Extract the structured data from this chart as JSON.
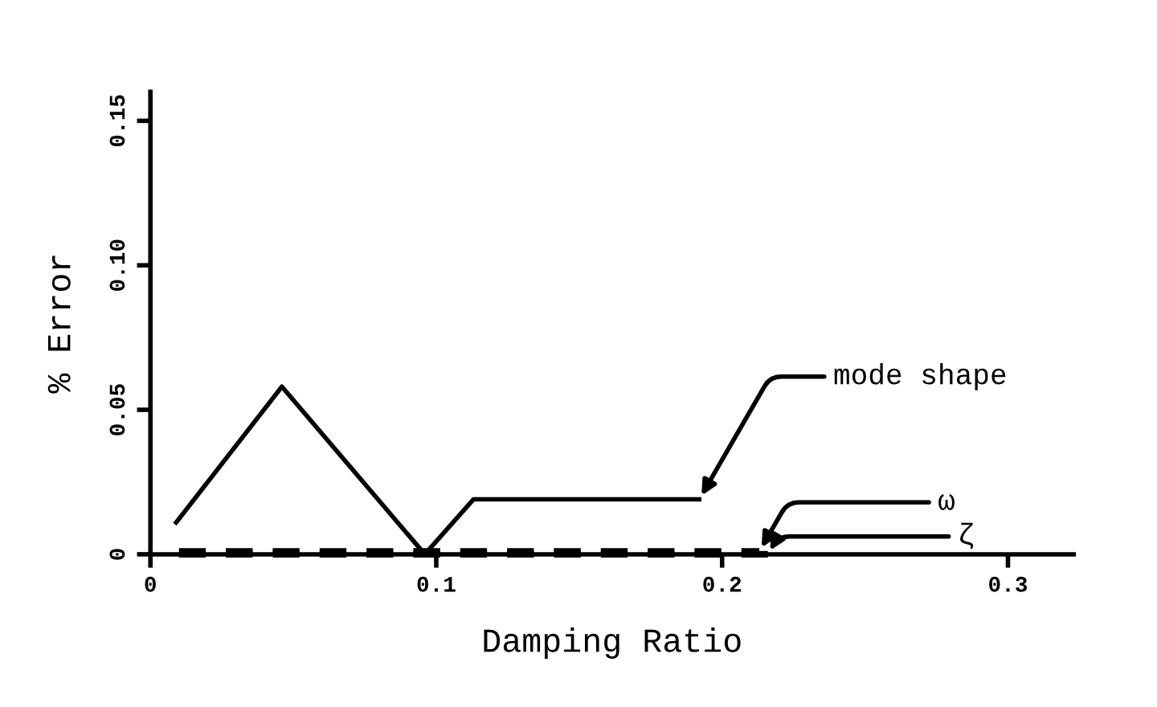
{
  "chart_data": {
    "type": "line",
    "xlabel": "Damping Ratio",
    "ylabel": "% Error",
    "xlim": [
      0,
      0.323
    ],
    "ylim": [
      0,
      0.16
    ],
    "xticks": [
      0,
      0.1,
      0.2,
      0.3
    ],
    "yticks": [
      0,
      0.05,
      {
        "value": 0.1,
        "label": "0.10"
      },
      0.15
    ],
    "grid": false,
    "legend": false,
    "series": [
      {
        "name": "mode shape",
        "color": "#000000",
        "line_style": "solid",
        "x": [
          0.009,
          0.046,
          0.096,
          0.113,
          0.192
        ],
        "values": [
          0.011,
          0.058,
          0,
          0.019,
          0.019
        ]
      },
      {
        "name": "ω",
        "color": "#000000",
        "line_style": "dashed",
        "x": [
          0.01,
          0.05,
          0.1,
          0.15,
          0.2,
          0.213
        ],
        "values": [
          0.001,
          0.001,
          0.001,
          0.001,
          0.001,
          0.001
        ]
      },
      {
        "name": "ζ",
        "color": "#000000",
        "line_style": "dashed",
        "x": [
          0.01,
          0.05,
          0.1,
          0.15,
          0.2,
          0.216
        ],
        "values": [
          0,
          0,
          0,
          0,
          0,
          0
        ]
      }
    ]
  }
}
